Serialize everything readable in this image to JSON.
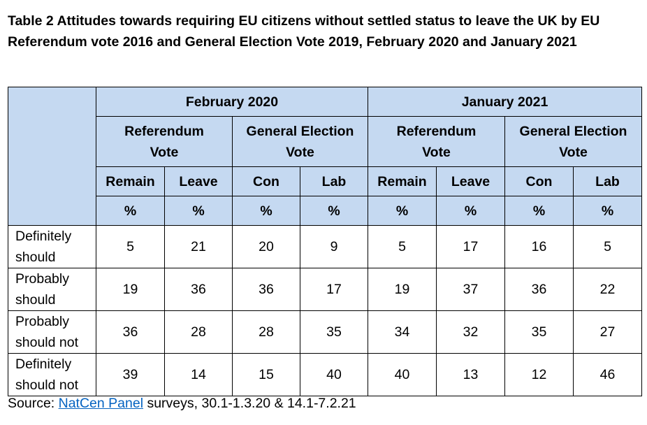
{
  "title": "Table 2 Attitudes towards requiring EU citizens without settled status to leave the UK by EU Referendum vote 2016 and General Election Vote 2019, February 2020 and January 2021",
  "periods": [
    "February 2020",
    "January 2021"
  ],
  "groups": {
    "referendum": [
      "Referendum",
      "Vote"
    ],
    "general_election": [
      "General Election",
      "Vote"
    ]
  },
  "subgroups": [
    "Remain",
    "Leave",
    "Con",
    "Lab",
    "Remain",
    "Leave",
    "Con",
    "Lab"
  ],
  "unit": "%",
  "rows": [
    {
      "label": [
        "Definitely",
        "should"
      ],
      "values": [
        "5",
        "21",
        "20",
        "9",
        "5",
        "17",
        "16",
        "5"
      ]
    },
    {
      "label": [
        "Probably",
        "should"
      ],
      "values": [
        "19",
        "36",
        "36",
        "17",
        "19",
        "37",
        "36",
        "22"
      ]
    },
    {
      "label": [
        "Probably",
        "should not"
      ],
      "values": [
        "36",
        "28",
        "28",
        "35",
        "34",
        "32",
        "35",
        "27"
      ]
    },
    {
      "label": [
        "Definitely",
        "should not"
      ],
      "values": [
        "39",
        "14",
        "15",
        "40",
        "40",
        "13",
        "12",
        "46"
      ]
    }
  ],
  "source": {
    "prefix": "Source: ",
    "link_text": "NatCen Panel",
    "suffix": " surveys, 30.1-1.3.20 & 14.1-7.2.21"
  },
  "colors": {
    "header_fill": "#c5d9f1",
    "link": "#0563c1"
  }
}
